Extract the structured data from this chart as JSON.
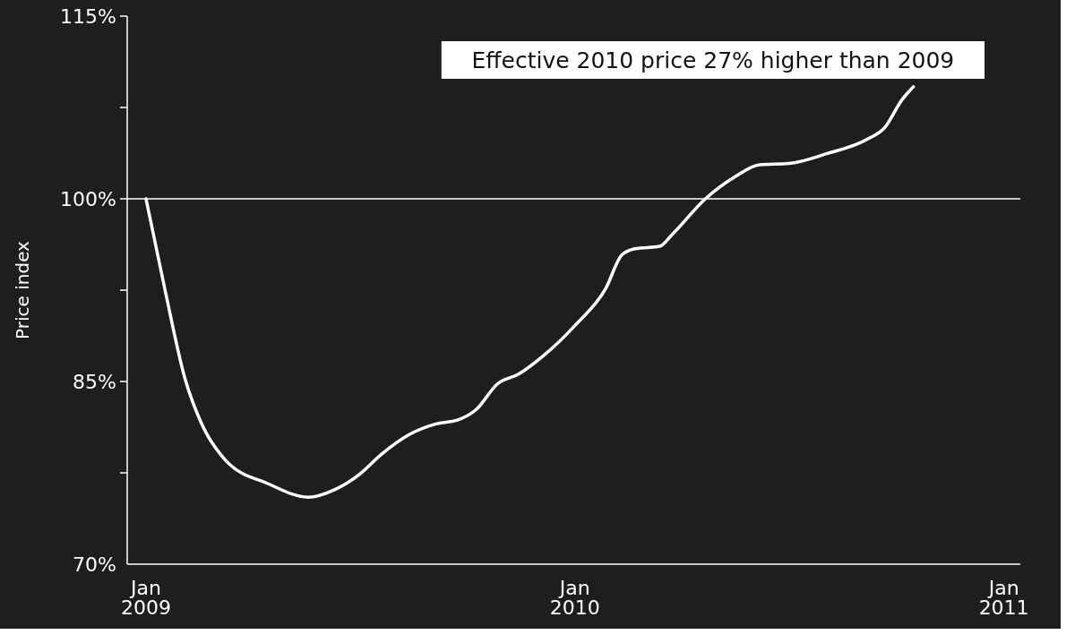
{
  "chart_data": {
    "type": "line",
    "ylabel": "Price index",
    "x": [
      "2009-01-01",
      "2009-01-17",
      "2009-02-03",
      "2009-02-17",
      "2009-03-10",
      "2009-04-15",
      "2009-05-19",
      "2009-06-10",
      "2009-07-02",
      "2009-07-20",
      "2009-08-14",
      "2009-09-04",
      "2009-09-25",
      "2009-10-09",
      "2009-10-27",
      "2009-11-14",
      "2009-12-05",
      "2010-01-02",
      "2010-01-27",
      "2010-02-10",
      "2010-02-21",
      "2010-03-14",
      "2010-03-25",
      "2010-04-22",
      "2010-05-17",
      "2010-06-07",
      "2010-07-02",
      "2010-08-03",
      "2010-09-07",
      "2010-09-22",
      "2010-10-06",
      "2010-10-16"
    ],
    "series": [
      {
        "color": "#ffffff",
        "values": [
          100,
          92.6,
          85.3,
          81.6,
          78.5,
          76.6,
          75.5,
          76.1,
          77.4,
          79.0,
          80.7,
          81.5,
          81.9,
          82.7,
          84.8,
          85.6,
          87.1,
          89.7,
          92.6,
          95.4,
          95.9,
          96.1,
          97.1,
          100,
          101.8,
          102.8,
          102.9,
          103.7,
          104.9,
          105.9,
          108.1,
          109.2
        ]
      }
    ],
    "xlim": [
      "2008-12-16",
      "2011-01-15"
    ],
    "xticks": [
      {
        "value": "2009-01-01",
        "label": "Jan\n2009"
      },
      {
        "value": "2010-01-01",
        "label": "Jan\n2010"
      },
      {
        "value": "2011-01-01",
        "label": "Jan\n2011"
      }
    ],
    "ylim": [
      70,
      115
    ],
    "yticks": [
      {
        "value": 70,
        "label": "70%"
      },
      {
        "value": 77.5,
        "label": null
      },
      {
        "value": 85,
        "label": "85%"
      },
      {
        "value": 92.5,
        "label": null
      },
      {
        "value": 100,
        "label": "100%"
      },
      {
        "value": 107.5,
        "label": null
      },
      {
        "value": 115,
        "label": "115%"
      }
    ],
    "ref_lines": [
      {
        "axis": "y",
        "value": 100,
        "color": "#ffffff"
      }
    ],
    "annotations": [
      "Effective 2010 price 27% higher than 2009"
    ],
    "grid": false,
    "marker": "none",
    "line_style": "solid"
  }
}
